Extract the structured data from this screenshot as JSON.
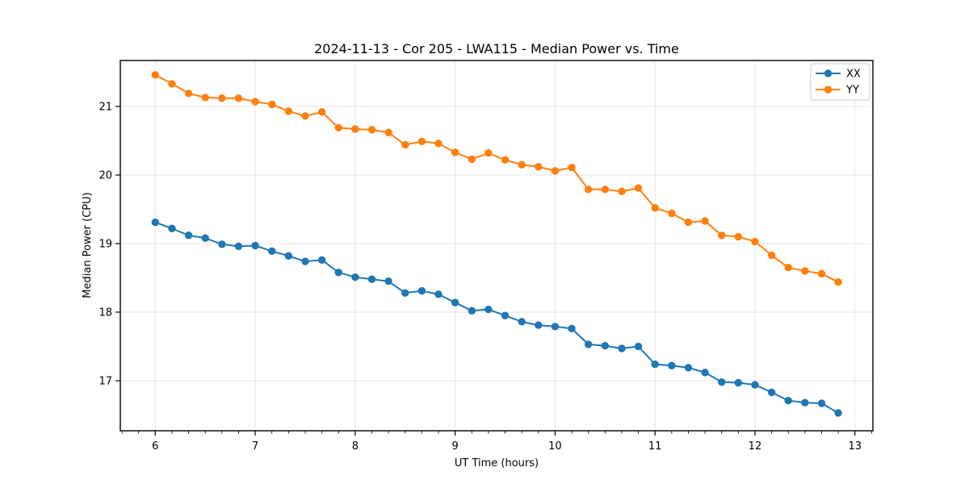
{
  "chart_data": {
    "type": "line",
    "title": "2024-11-13 - Cor 205 - LWA115 - Median Power vs. Time",
    "xlabel": "UT Time (hours)",
    "ylabel": "Median Power (CPU)",
    "xlim": [
      5.65,
      13.18
    ],
    "ylim": [
      16.27,
      21.67
    ],
    "xticks": [
      6,
      7,
      8,
      9,
      10,
      11,
      12,
      13
    ],
    "yticks": [
      17,
      18,
      19,
      20,
      21
    ],
    "x_minor_step_hours": 0.16667,
    "grid": true,
    "grid_color": "#e6e6e6",
    "spine_color": "#000000",
    "background_color": "#ffffff",
    "legend_position": "upper right",
    "x": [
      6.0,
      6.167,
      6.333,
      6.5,
      6.667,
      6.833,
      7.0,
      7.167,
      7.333,
      7.5,
      7.667,
      7.833,
      8.0,
      8.167,
      8.333,
      8.5,
      8.667,
      8.833,
      9.0,
      9.167,
      9.333,
      9.5,
      9.667,
      9.833,
      10.0,
      10.167,
      10.333,
      10.5,
      10.667,
      10.833,
      11.0,
      11.167,
      11.333,
      11.5,
      11.667,
      11.833,
      12.0,
      12.167,
      12.333,
      12.5,
      12.667,
      12.833
    ],
    "series": [
      {
        "name": "XX",
        "color": "#1f77b4",
        "marker": "circle",
        "values": [
          19.31,
          19.22,
          19.12,
          19.08,
          18.99,
          18.96,
          18.97,
          18.89,
          18.82,
          18.74,
          18.76,
          18.58,
          18.51,
          18.48,
          18.45,
          18.28,
          18.31,
          18.26,
          18.14,
          18.02,
          18.04,
          17.95,
          17.86,
          17.81,
          17.79,
          17.76,
          17.53,
          17.51,
          17.47,
          17.5,
          17.24,
          17.22,
          17.19,
          17.12,
          16.98,
          16.97,
          16.94,
          16.83,
          16.71,
          16.68,
          16.67,
          16.53
        ]
      },
      {
        "name": "YY",
        "color": "#ff7f0e",
        "marker": "circle",
        "values": [
          21.46,
          21.33,
          21.19,
          21.13,
          21.12,
          21.12,
          21.07,
          21.03,
          20.93,
          20.86,
          20.92,
          20.69,
          20.67,
          20.66,
          20.62,
          20.44,
          20.49,
          20.46,
          20.33,
          20.23,
          20.32,
          20.22,
          20.15,
          20.12,
          20.06,
          20.11,
          19.79,
          19.79,
          19.76,
          19.81,
          19.52,
          19.44,
          19.31,
          19.33,
          19.12,
          19.1,
          19.03,
          18.83,
          18.65,
          18.6,
          18.56,
          18.44
        ]
      }
    ]
  }
}
